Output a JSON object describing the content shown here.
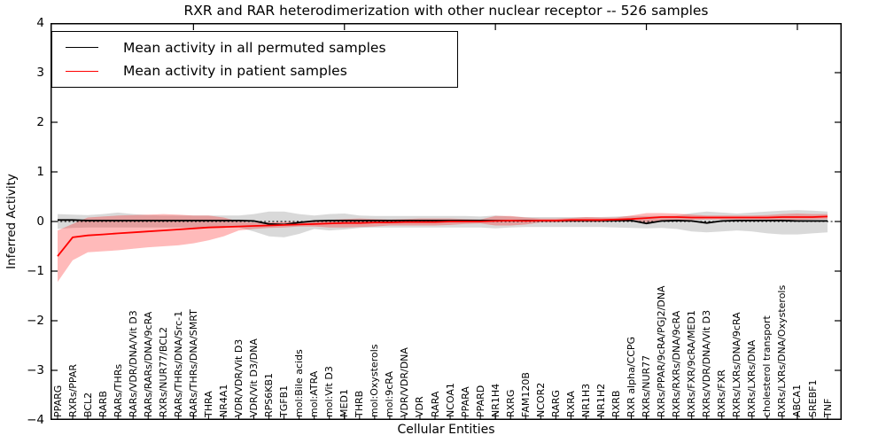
{
  "chart_data": {
    "type": "line",
    "title": "RXR and RAR heterodimerization with other nuclear receptor -- 526 samples",
    "xlabel": "Cellular Entities",
    "ylabel": "Inferred Activity",
    "ylim": [
      -4,
      4
    ],
    "ytick_labels": [
      "4",
      "3",
      "2",
      "1",
      "0",
      "−1",
      "−2",
      "−3",
      "−4"
    ],
    "xticks_major": [
      10,
      20,
      30,
      40,
      50
    ],
    "grid": false,
    "zero_line": {
      "style": "dashed",
      "color": "#000000",
      "y": 0
    },
    "legend_position": "upper left",
    "categories": [
      "PPARG",
      "RXRs/PPAR",
      "BCL2",
      "RARB",
      "RARs/THRs",
      "RARs/VDR/DNA/Vit D3",
      "RARs/RARs/DNA/9cRA",
      "RXRs/NUR77/BCL2",
      "RARs/THRs/DNA/Src-1",
      "RARs/THRs/DNA/SMRT",
      "THRA",
      "NR4A1",
      "VDR/VDR/Vit D3",
      "VDR/Vit D3/DNA",
      "RPS6KB1",
      "TGFB1",
      "mol:Bile acids",
      "mol:ATRA",
      "mol:Vit D3",
      "MED1",
      "THRB",
      "mol:Oxysterols",
      "mol:9cRA",
      "VDR/VDR/DNA",
      "VDR",
      "RARA",
      "NCOA1",
      "PPARA",
      "PPARD",
      "NR1H4",
      "RXRG",
      "FAM120B",
      "NCOR2",
      "RARG",
      "RXRA",
      "NR1H3",
      "NR1H2",
      "RXRB",
      "RXR alpha/CCPG",
      "RXRs/NUR77",
      "RXRs/PPAR/9cRA/PGJ2/DNA",
      "RXRs/RXRs/DNA/9cRA",
      "RXRs/FXR/9cRA/MED1",
      "RXRs/VDR/DNA/Vit D3",
      "RXRs/FXR",
      "RXRs/LXRs/DNA/9cRA",
      "RXRs/LXRs/DNA",
      "cholesterol transport",
      "RXRs/LXRs/DNA/Oxysterols",
      "ABCA1",
      "SREBF1",
      "TNF"
    ],
    "series": [
      {
        "name": "Mean activity in all permuted samples",
        "color": "#000000",
        "band_color": "#000000",
        "band_opacity": 0.15,
        "values": [
          0.03,
          0.03,
          0.02,
          0.02,
          0.02,
          0.02,
          0.02,
          0.02,
          0.02,
          0.02,
          0.02,
          0.02,
          0.02,
          0.01,
          -0.05,
          -0.06,
          -0.02,
          0.01,
          0.02,
          0.02,
          0.02,
          0.02,
          0.02,
          0.02,
          0.02,
          0.02,
          0.02,
          0.02,
          0.02,
          0.02,
          0.02,
          0.02,
          0.02,
          0.02,
          0.02,
          0.02,
          0.02,
          0.02,
          0.02,
          -0.04,
          0.01,
          0.02,
          0.01,
          -0.03,
          0.01,
          0.02,
          0.02,
          0.02,
          0.02,
          0.01,
          0.01,
          0.01
        ],
        "band_lower": [
          -0.15,
          -0.13,
          -0.12,
          -0.12,
          -0.12,
          -0.12,
          -0.12,
          -0.12,
          -0.12,
          -0.12,
          -0.12,
          -0.12,
          -0.12,
          -0.2,
          -0.3,
          -0.32,
          -0.25,
          -0.15,
          -0.18,
          -0.16,
          -0.13,
          -0.12,
          -0.12,
          -0.12,
          -0.12,
          -0.12,
          -0.12,
          -0.12,
          -0.12,
          -0.14,
          -0.12,
          -0.11,
          -0.11,
          -0.11,
          -0.11,
          -0.11,
          -0.11,
          -0.12,
          -0.13,
          -0.14,
          -0.13,
          -0.15,
          -0.2,
          -0.22,
          -0.2,
          -0.18,
          -0.2,
          -0.24,
          -0.26,
          -0.26,
          -0.24,
          -0.22
        ],
        "band_upper": [
          0.15,
          0.14,
          0.13,
          0.15,
          0.18,
          0.15,
          0.13,
          0.12,
          0.12,
          0.12,
          0.12,
          0.12,
          0.12,
          0.15,
          0.2,
          0.2,
          0.15,
          0.12,
          0.15,
          0.16,
          0.12,
          0.11,
          0.11,
          0.11,
          0.11,
          0.11,
          0.11,
          0.11,
          0.1,
          0.12,
          0.1,
          0.09,
          0.09,
          0.09,
          0.09,
          0.09,
          0.09,
          0.1,
          0.11,
          0.11,
          0.11,
          0.12,
          0.17,
          0.2,
          0.18,
          0.16,
          0.18,
          0.2,
          0.22,
          0.23,
          0.22,
          0.2
        ]
      },
      {
        "name": "Mean activity in patient samples",
        "color": "#ff0000",
        "band_color": "#ff0000",
        "band_opacity": 0.27,
        "values": [
          -0.7,
          -0.32,
          -0.28,
          -0.26,
          -0.24,
          -0.22,
          -0.2,
          -0.18,
          -0.16,
          -0.14,
          -0.12,
          -0.11,
          -0.1,
          -0.09,
          -0.08,
          -0.07,
          -0.06,
          -0.05,
          -0.04,
          -0.03,
          -0.03,
          -0.02,
          -0.02,
          -0.01,
          -0.01,
          -0.01,
          0.0,
          0.0,
          0.0,
          0.01,
          0.02,
          0.01,
          0.02,
          0.02,
          0.03,
          0.03,
          0.03,
          0.04,
          0.05,
          0.07,
          0.09,
          0.09,
          0.08,
          0.08,
          0.08,
          0.08,
          0.08,
          0.08,
          0.09,
          0.09,
          0.09,
          0.1
        ],
        "band_lower": [
          -1.22,
          -0.78,
          -0.62,
          -0.6,
          -0.58,
          -0.55,
          -0.52,
          -0.5,
          -0.48,
          -0.44,
          -0.38,
          -0.3,
          -0.18,
          -0.15,
          -0.13,
          -0.12,
          -0.1,
          -0.1,
          -0.12,
          -0.12,
          -0.11,
          -0.1,
          -0.08,
          -0.08,
          -0.08,
          -0.08,
          -0.07,
          -0.05,
          -0.04,
          -0.08,
          -0.08,
          -0.06,
          -0.02,
          -0.02,
          -0.01,
          -0.01,
          -0.01,
          0.0,
          0.0,
          -0.02,
          0.02,
          0.03,
          0.03,
          0.04,
          0.04,
          0.04,
          0.04,
          0.04,
          0.03,
          0.03,
          0.04,
          0.05
        ],
        "band_upper": [
          -0.18,
          -0.05,
          0.08,
          0.1,
          0.12,
          0.13,
          0.14,
          0.15,
          0.14,
          0.12,
          0.12,
          0.08,
          0.0,
          -0.02,
          -0.02,
          -0.01,
          -0.01,
          0.0,
          0.03,
          0.05,
          0.06,
          0.05,
          0.04,
          0.05,
          0.06,
          0.06,
          0.06,
          0.05,
          0.04,
          0.11,
          0.11,
          0.08,
          0.06,
          0.06,
          0.07,
          0.09,
          0.08,
          0.08,
          0.12,
          0.17,
          0.17,
          0.16,
          0.14,
          0.12,
          0.12,
          0.12,
          0.12,
          0.13,
          0.15,
          0.16,
          0.15,
          0.15
        ]
      }
    ]
  }
}
